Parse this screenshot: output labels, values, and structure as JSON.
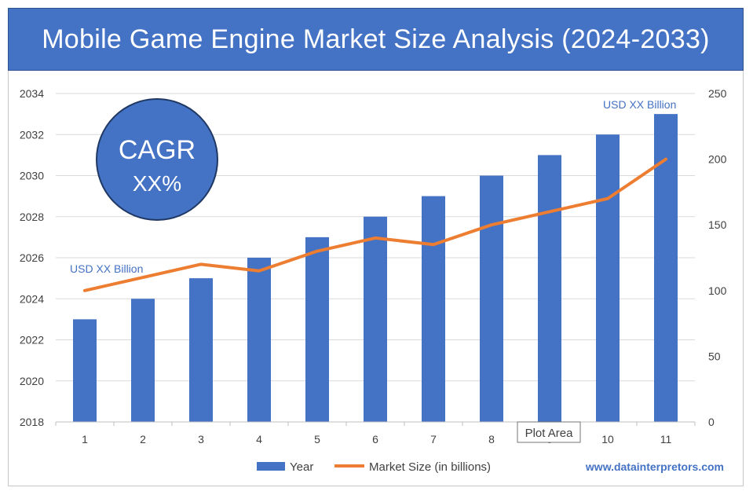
{
  "title": "Mobile Game Engine Market Size Analysis (2024-2033)",
  "cagr": {
    "label": "CAGR",
    "value": "XX%"
  },
  "annotations": {
    "start": "USD XX Billion",
    "end": "USD XX Billion"
  },
  "tooltip": "Plot Area",
  "watermark": "www.datainterpretors.com",
  "colors": {
    "bar": "#4472c4",
    "line": "#ed7d31",
    "title_bg": "#4472c4",
    "grid": "#d9d9d9",
    "annotation": "#4472c4"
  },
  "chart_data": {
    "type": "bar",
    "categories": [
      "1",
      "2",
      "3",
      "4",
      "5",
      "6",
      "7",
      "8",
      "9",
      "10",
      "11"
    ],
    "series": [
      {
        "name": "Year",
        "type": "bar",
        "axis": "left",
        "values": [
          2023,
          2024,
          2025,
          2026,
          2027,
          2028,
          2029,
          2030,
          2031,
          2032,
          2033
        ]
      },
      {
        "name": "Market Size (in billions)",
        "type": "line",
        "axis": "right",
        "values": [
          100,
          110,
          120,
          115,
          130,
          140,
          135,
          150,
          160,
          170,
          200
        ]
      }
    ],
    "y_left": {
      "min": 2018,
      "max": 2034,
      "ticks": [
        2018,
        2020,
        2022,
        2024,
        2026,
        2028,
        2030,
        2032,
        2034
      ]
    },
    "y_right": {
      "min": 0,
      "max": 250,
      "ticks": [
        0,
        50,
        100,
        150,
        200,
        250
      ]
    },
    "grid": true,
    "legend": "bottom"
  }
}
